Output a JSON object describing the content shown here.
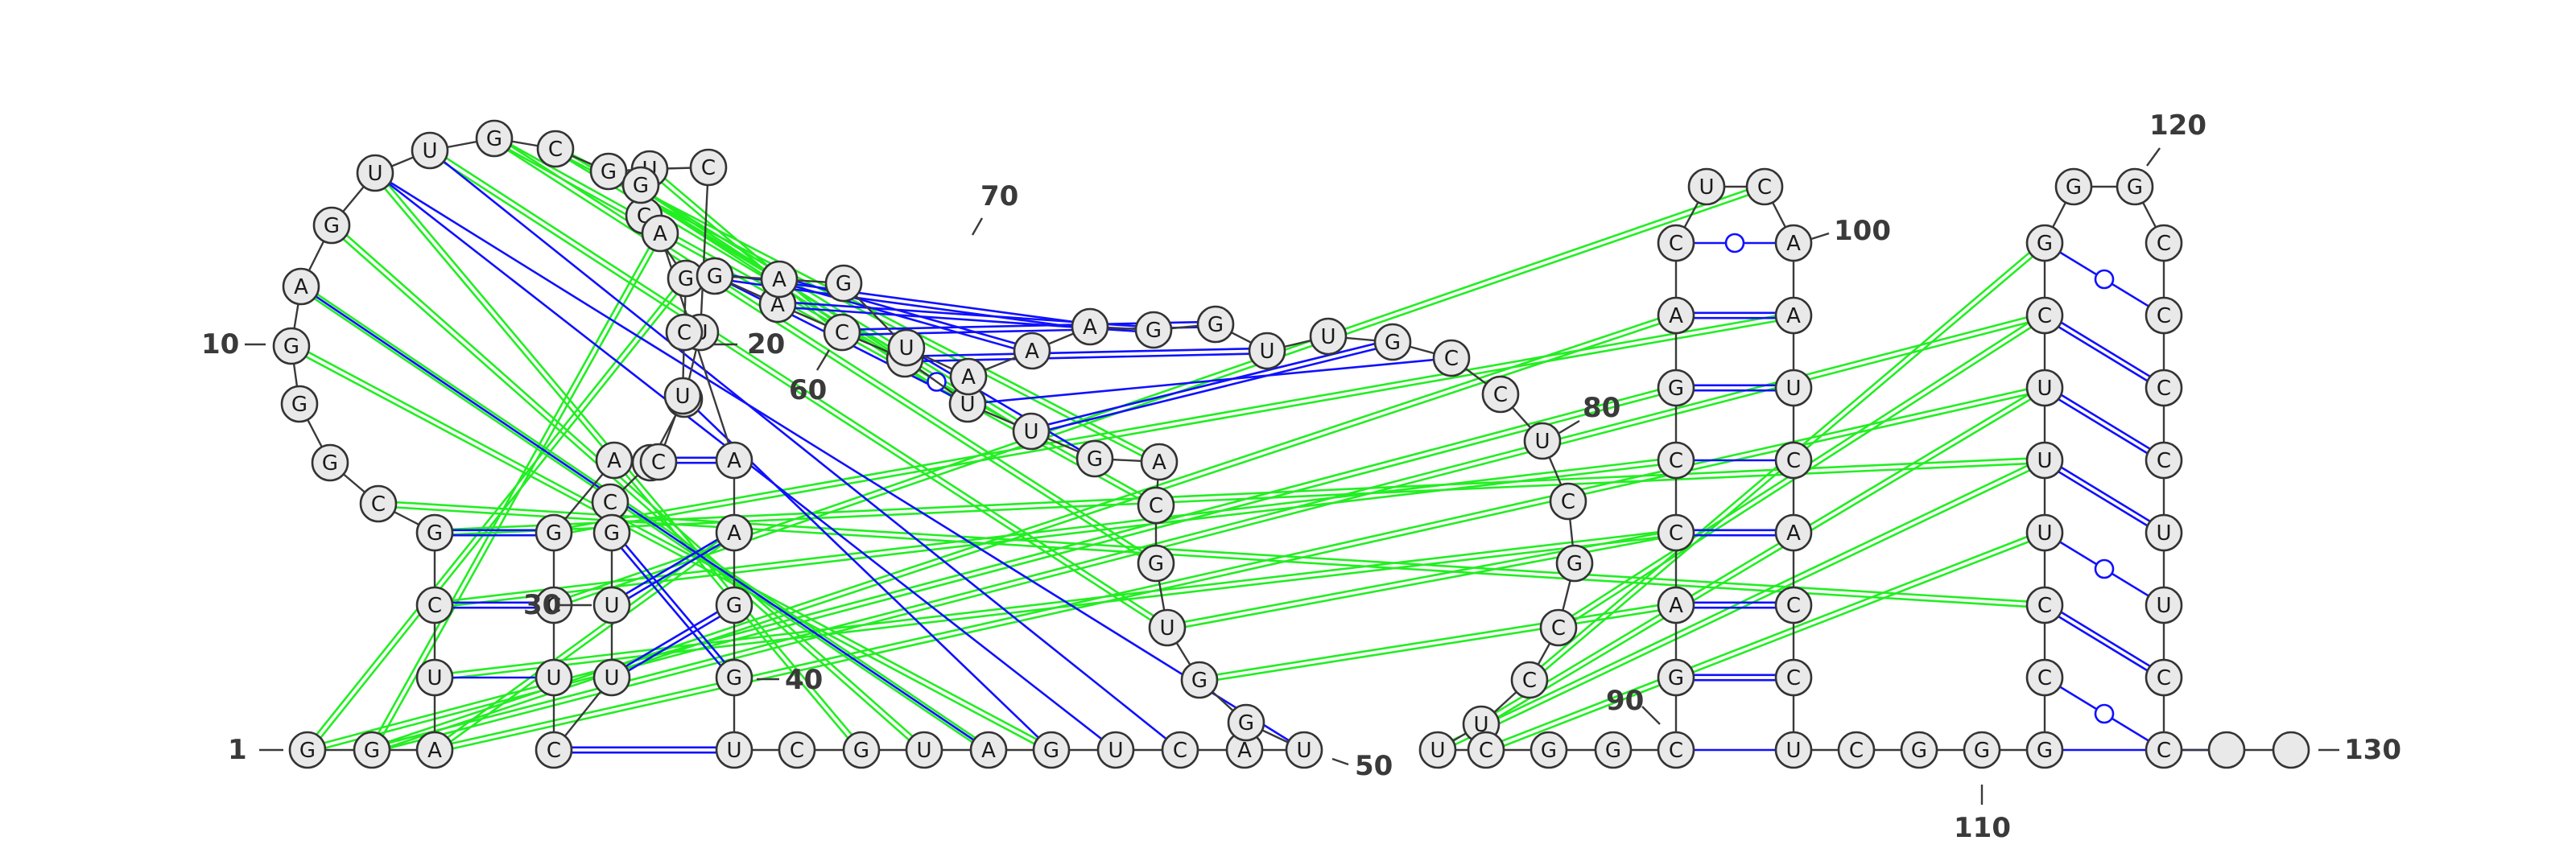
{
  "sequence": "GGAUCGCGGGAGUUGCGUCUAUCGUUCUCGACUCGCGAAAGGUCGUAGUCAUGGUGCAGUUCCAGAGUAAAGGUUGCCUCGCCUUCGGCGACCGACUCAAUCACCUCGGGCCUUUCGGGCCCCUUCC",
  "number_labels": [
    "1",
    "10",
    "20",
    "30",
    "40",
    "50",
    "60",
    "70",
    "80",
    "90",
    "100",
    "110",
    "120",
    "130"
  ],
  "colors": {
    "canonical_pair": "#1010ff",
    "pseudoknot_pair": "#22ee22",
    "backbone": "#3a3a3a",
    "node_fill": "#e9e9e9"
  },
  "blue_pairs": [
    [
      3,
      36
    ],
    [
      5,
      38
    ],
    [
      8,
      12
    ],
    [
      24,
      35
    ],
    [
      15,
      28
    ],
    [
      14,
      30
    ],
    [
      13,
      47
    ],
    [
      49,
      52
    ],
    [
      65,
      74
    ],
    [
      66,
      73
    ],
    [
      67,
      72
    ],
    [
      62,
      70
    ],
    [
      61,
      71
    ],
    [
      60,
      59
    ],
    [
      64,
      58
    ],
    [
      63,
      76
    ],
    [
      91,
      103
    ],
    [
      93,
      101
    ],
    [
      94,
      100
    ],
    [
      95,
      99
    ],
    [
      96,
      98
    ],
    [
      97,
      97
    ],
    [
      111,
      127
    ],
    [
      112,
      126
    ],
    [
      113,
      125
    ],
    [
      114,
      124
    ],
    [
      115,
      123
    ],
    [
      116,
      122
    ],
    [
      117,
      121
    ]
  ],
  "green_pairs": [
    [
      1,
      35
    ],
    [
      2,
      38
    ],
    [
      3,
      40
    ],
    [
      4,
      95
    ],
    [
      5,
      96
    ],
    [
      6,
      92
    ],
    [
      13,
      55
    ],
    [
      14,
      56
    ],
    [
      15,
      57
    ],
    [
      16,
      58
    ],
    [
      17,
      59
    ],
    [
      18,
      60
    ],
    [
      25,
      45
    ],
    [
      26,
      46
    ],
    [
      28,
      47
    ],
    [
      29,
      48
    ],
    [
      33,
      115
    ],
    [
      34,
      116
    ],
    [
      36,
      114
    ],
    [
      37,
      117
    ],
    [
      53,
      84
    ],
    [
      54,
      85
    ],
    [
      86,
      116
    ],
    [
      87,
      118
    ]
  ]
}
